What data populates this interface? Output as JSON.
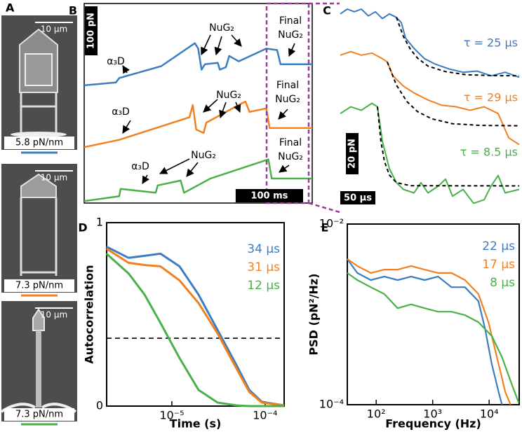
{
  "panel_a": {
    "letter": "A",
    "images": [
      {
        "scale_bar": "10 µm",
        "stiffness": "5.8 pN/nm",
        "color": "#3c7cc0"
      },
      {
        "scale_bar": "10 µm",
        "stiffness": "7.3 pN/nm",
        "color": "#f28020"
      },
      {
        "scale_bar": "10 µm",
        "stiffness": "7.3 pN/nm",
        "color": "#4ab04a"
      }
    ]
  },
  "chart_data": [
    {
      "type": "trace",
      "letter": "B",
      "xlim": [
        0,
        338
      ],
      "ylim": [
        0,
        407
      ],
      "series": [
        {
          "color": "#3c7cc0",
          "x": [
            0,
            47,
            52,
            114,
            164,
            169,
            174,
            179,
            198,
            201,
            210,
            215,
            229,
            270,
            286,
            291,
            338
          ],
          "values": [
            240,
            246,
            255,
            279,
            326,
            315,
            272,
            283,
            286,
            272,
            277,
            300,
            289,
            315,
            312,
            283,
            283
          ]
        },
        {
          "color": "#f28020",
          "x": [
            0,
            52,
            156,
            161,
            166,
            177,
            181,
            229,
            239,
            245,
            270,
            275,
            338
          ],
          "values": [
            114,
            129,
            175,
            200,
            150,
            143,
            164,
            200,
            207,
            186,
            193,
            153,
            153
          ]
        },
        {
          "color": "#4ab04a",
          "x": [
            0,
            52,
            54,
            106,
            109,
            143,
            148,
            187,
            273,
            278,
            338
          ],
          "values": [
            4,
            14,
            29,
            21,
            36,
            46,
            21,
            50,
            89,
            50,
            50
          ]
        }
      ],
      "annotations": [
        {
          "text": [
            "α₃D"
          ]
        },
        {
          "text": [
            "NuG₂"
          ]
        },
        {
          "text": [
            "Final",
            "NuG₂"
          ]
        },
        {
          "text": [
            "α₃D"
          ]
        },
        {
          "text": [
            "NuG₂"
          ]
        },
        {
          "text": [
            "Final",
            "NuG₂"
          ]
        },
        {
          "text": [
            "α₃D"
          ]
        },
        {
          "text": [
            "NuG₂"
          ]
        },
        {
          "text": [
            "Final",
            "NuG₂"
          ]
        }
      ],
      "scale_bars": [
        {
          "label": "100 pN",
          "value": 100,
          "axis": "y"
        },
        {
          "label": "100 ms",
          "value": 100,
          "axis": "x"
        }
      ]
    },
    {
      "type": "fit-trace",
      "letter": "C",
      "xlim": [
        0,
        255
      ],
      "ylim": [
        0,
        100
      ],
      "series": [
        {
          "name": "τ = 25 µs",
          "color": "#3c7cc0",
          "x": [
            0,
            10,
            20,
            30,
            40,
            50,
            60,
            70,
            80,
            87,
            93,
            105,
            120,
            135,
            155,
            175,
            195,
            215,
            235,
            255
          ],
          "values": [
            95,
            97.3,
            96,
            97.3,
            94,
            96,
            92.7,
            95,
            93.3,
            90.7,
            83.3,
            78.3,
            73.3,
            70.7,
            68.3,
            66.7,
            67.3,
            65,
            66.7,
            64.3
          ],
          "fit_x": [
            80,
            90,
            100,
            110,
            125,
            150,
            180,
            220,
            255
          ],
          "fit_values": [
            93.3,
            84,
            77.8,
            73.6,
            69.7,
            67,
            65.5,
            65.1,
            65
          ]
        },
        {
          "name": "τ = 29 µs",
          "color": "#f28020",
          "x": [
            0,
            15,
            30,
            45,
            60,
            67,
            75,
            90,
            105,
            125,
            145,
            165,
            185,
            205,
            225,
            240,
            255
          ],
          "values": [
            75,
            76.7,
            75,
            76,
            73.3,
            71.7,
            65,
            60,
            56.7,
            53.3,
            50.7,
            50,
            48.3,
            50,
            46.7,
            35,
            31.7
          ],
          "fit_x": [
            67,
            80,
            95,
            110,
            130,
            160,
            200,
            255
          ],
          "fit_values": [
            71.7,
            60.5,
            52.5,
            47.7,
            44.2,
            41.8,
            41,
            40.8
          ]
        },
        {
          "name": "τ = 8.5 µs",
          "color": "#4ab04a",
          "x": [
            0,
            15,
            30,
            45,
            53,
            60,
            70,
            80,
            90,
            105,
            115,
            125,
            140,
            150,
            160,
            175,
            190,
            205,
            215,
            225,
            235,
            255
          ],
          "values": [
            46.7,
            50,
            48.3,
            51.7,
            50,
            33.3,
            20,
            13.3,
            10,
            8.3,
            13.3,
            8.3,
            11.7,
            15,
            6.7,
            10,
            3.3,
            5,
            11.7,
            16.7,
            8.3,
            10
          ],
          "fit_x": [
            53,
            58,
            63,
            70,
            80,
            100,
            255
          ],
          "fit_values": [
            50,
            33,
            23.5,
            16.9,
            13.3,
            11.8,
            11.7
          ]
        }
      ],
      "scale_bars": [
        {
          "label": "20 pN",
          "value": 20,
          "axis": "y"
        },
        {
          "label": "50 µs",
          "value": 50,
          "axis": "x"
        }
      ]
    },
    {
      "type": "line",
      "letter": "D",
      "x_label": "Time (s)",
      "y_label": "Autocorrelation",
      "xscale": "log",
      "xlim": [
        2e-06,
        0.00016
      ],
      "ylim": [
        0,
        1
      ],
      "xticks": [
        {
          "value": 1e-05,
          "label": "10⁻⁵"
        },
        {
          "value": 0.0001,
          "label": "10⁻⁴"
        }
      ],
      "yticks": [
        0,
        1
      ],
      "reference_line": 0.37,
      "x": [
        1.99e-06,
        3.44e-06,
        5.1e-06,
        7.55e-06,
        1.21e-05,
        1.93e-05,
        3.09e-05,
        4.94e-05,
        6.76e-05,
        9.24e-05,
        0.00016
      ],
      "series": [
        {
          "name": "34 µs",
          "color": "#3c7cc0",
          "values": [
            0.869,
            0.808,
            0.819,
            0.831,
            0.762,
            0.608,
            0.415,
            0.223,
            0.088,
            0.023,
            0.004
          ]
        },
        {
          "name": "31 µs",
          "color": "#f28020",
          "values": [
            0.858,
            0.781,
            0.769,
            0.762,
            0.685,
            0.562,
            0.396,
            0.204,
            0.077,
            0.019,
            0.004
          ]
        },
        {
          "name": "12 µs",
          "color": "#4ab04a",
          "values": [
            0.831,
            0.723,
            0.608,
            0.454,
            0.262,
            0.088,
            0.019,
            0.004,
            0,
            0,
            0
          ]
        }
      ]
    },
    {
      "type": "line",
      "letter": "E",
      "x_label": "Frequency (Hz)",
      "y_label": "PSD (pN²/Hz)",
      "xscale": "log",
      "yscale": "log",
      "xlim": [
        30.8,
        34000
      ],
      "ylim": [
        0.0001,
        0.01
      ],
      "xticks": [
        {
          "value": 100,
          "label": "10²"
        },
        {
          "value": 1000,
          "label": "10³"
        },
        {
          "value": 10000,
          "label": "10⁴"
        }
      ],
      "yticks": [
        {
          "value": 0.01,
          "label": "10⁻²"
        },
        {
          "value": 0.0001,
          "label": "10⁻⁴"
        }
      ],
      "series": [
        {
          "name": "22 µs",
          "color": "#3c7cc0",
          "x": [
            30.8,
            46.4,
            80.3,
            139,
            240,
            416,
            719,
            1245,
            2154,
            3727,
            6450,
            8480,
            11160,
            14690,
            16830
          ],
          "values": [
            0.0041,
            0.00287,
            0.0024,
            0.00262,
            0.0024,
            0.00262,
            0.0024,
            0.00262,
            0.002,
            0.002,
            0.0014,
            0.00069,
            0.00028,
            0.000138,
            0.0001
          ]
        },
        {
          "name": "17 µs",
          "color": "#f28020",
          "x": [
            30.8,
            46.4,
            80.3,
            139,
            240,
            416,
            719,
            1245,
            2154,
            3727,
            6450,
            9720,
            14690,
            19300,
            24000
          ],
          "values": [
            0.0041,
            0.00343,
            0.00287,
            0.00313,
            0.00313,
            0.00343,
            0.00313,
            0.00287,
            0.00287,
            0.0024,
            0.00168,
            0.00082,
            0.00028,
            0.000138,
            0.0001
          ]
        },
        {
          "name": "8 µs",
          "color": "#4ab04a",
          "x": [
            30.8,
            46.4,
            80.3,
            139,
            240,
            416,
            719,
            1245,
            2154,
            3727,
            6450,
            11160,
            16830,
            25400,
            33400
          ],
          "values": [
            0.00287,
            0.0024,
            0.002,
            0.00168,
            0.00117,
            0.00129,
            0.00117,
            0.00107,
            0.00107,
            0.00098,
            0.00082,
            0.000575,
            0.000337,
            0.000165,
            0.000105
          ]
        }
      ]
    }
  ]
}
